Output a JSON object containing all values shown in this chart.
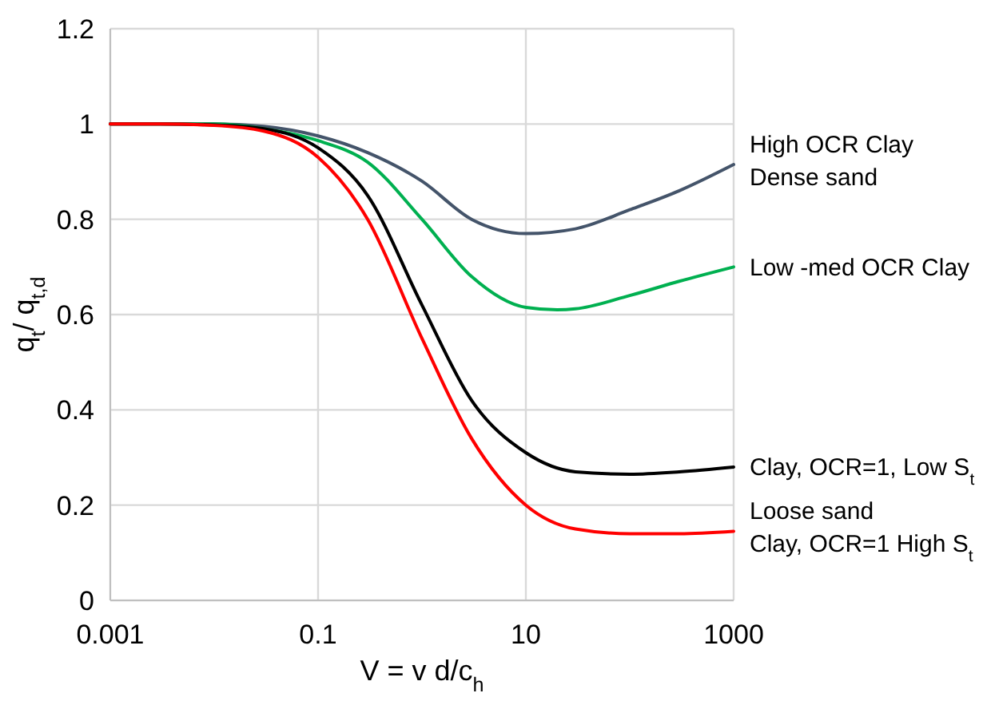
{
  "chart_data": {
    "type": "line",
    "xlabel": "V = v d/c$_{h}$",
    "ylabel": "q$_{t}$/ q$_{t,d}$",
    "log": "x",
    "xlim": [
      0.001,
      1000
    ],
    "xticks": [
      0.001,
      0.1,
      10,
      1000
    ],
    "ylim": [
      0,
      1.2
    ],
    "yticks": [
      0,
      0.2,
      0.4,
      0.6,
      0.8,
      1,
      1.2
    ],
    "grid": true,
    "line_style": "solid",
    "series": [
      {
        "name": "High OCR Clay\nDense sand",
        "color": "#44546a",
        "x": [
          0.001,
          0.003,
          0.01,
          0.03,
          0.1,
          0.3,
          1,
          3,
          10,
          30,
          100,
          300,
          1000
        ],
        "values": [
          1,
          1,
          1,
          0.995,
          0.975,
          0.94,
          0.88,
          0.8,
          0.77,
          0.78,
          0.82,
          0.86,
          0.915
        ]
      },
      {
        "name": "Low -med OCR Clay",
        "color": "#00b050",
        "x": [
          0.001,
          0.003,
          0.01,
          0.03,
          0.1,
          0.3,
          1,
          3,
          10,
          20,
          30,
          100,
          300,
          1000
        ],
        "values": [
          1,
          1,
          1,
          0.99,
          0.965,
          0.92,
          0.8,
          0.68,
          0.615,
          0.61,
          0.612,
          0.64,
          0.67,
          0.7
        ]
      },
      {
        "name": "Clay, OCR=1, Low S$_{t}$",
        "color": "#000000",
        "x": [
          0.001,
          0.003,
          0.01,
          0.03,
          0.1,
          0.3,
          1,
          3,
          10,
          30,
          100,
          300,
          1000
        ],
        "values": [
          1,
          1,
          0.998,
          0.99,
          0.95,
          0.85,
          0.62,
          0.42,
          0.31,
          0.27,
          0.265,
          0.27,
          0.28
        ]
      },
      {
        "name": "Loose sand\nClay, OCR=1 High S$_{t}$",
        "color": "#ff0000",
        "x": [
          0.001,
          0.003,
          0.01,
          0.03,
          0.1,
          0.3,
          1,
          3,
          10,
          30,
          100,
          300,
          1000
        ],
        "values": [
          1,
          1,
          0.997,
          0.985,
          0.93,
          0.8,
          0.55,
          0.34,
          0.2,
          0.15,
          0.14,
          0.14,
          0.145
        ]
      }
    ]
  }
}
